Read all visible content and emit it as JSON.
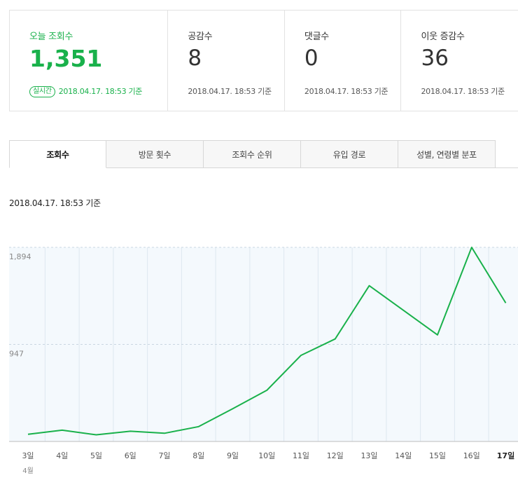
{
  "stats": [
    {
      "label": "오늘 조회수",
      "value": "1,351",
      "badge": "실시간",
      "time": "2018.04.17. 18:53 기준"
    },
    {
      "label": "공감수",
      "value": "8",
      "time": "2018.04.17. 18:53 기준"
    },
    {
      "label": "댓글수",
      "value": "0",
      "time": "2018.04.17. 18:53 기준"
    },
    {
      "label": "이웃 증감수",
      "value": "36",
      "time": "2018.04.17. 18:53 기준"
    }
  ],
  "tabs": [
    {
      "label": "조회수",
      "active": true
    },
    {
      "label": "방문 횟수",
      "active": false
    },
    {
      "label": "조회수 순위",
      "active": false
    },
    {
      "label": "유입 경로",
      "active": false
    },
    {
      "label": "성별, 연령별 분포",
      "active": false
    }
  ],
  "as_of": "2018.04.17. 18:53 기준",
  "colors": {
    "accent": "#19b14b",
    "chart_bg": "#f4f9fd",
    "grid": "#dde7f0"
  },
  "chart_data": {
    "type": "line",
    "categories": [
      "3일",
      "4일",
      "5일",
      "6일",
      "7일",
      "8일",
      "9일",
      "10일",
      "11일",
      "12일",
      "13일",
      "14일",
      "15일",
      "16일",
      "17일"
    ],
    "month_label": "4월",
    "series": [
      {
        "values": [
          70,
          110,
          65,
          100,
          80,
          145,
          320,
          500,
          840,
          1000,
          1520,
          1280,
          1040,
          1894,
          1351
        ]
      }
    ],
    "yticks": [
      {
        "value": 947,
        "label": "947"
      },
      {
        "value": 1894,
        "label": "1,894"
      }
    ],
    "ylim": [
      0,
      1894
    ],
    "grid": true,
    "highlight_last_category": true
  }
}
